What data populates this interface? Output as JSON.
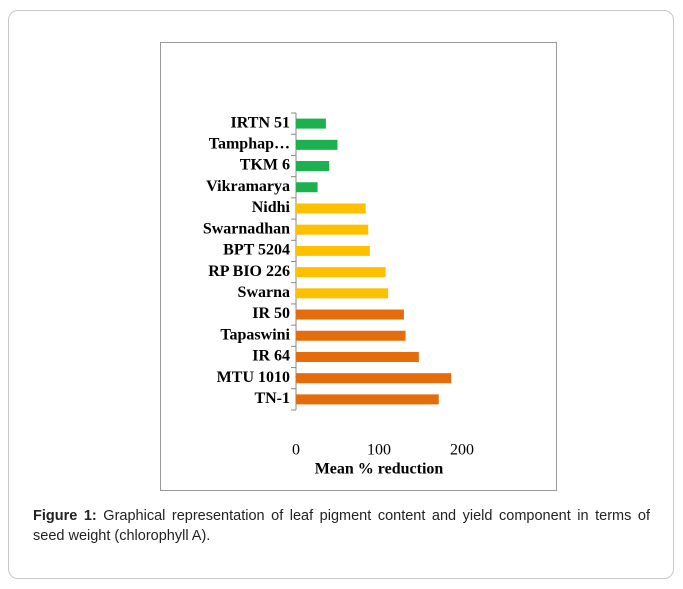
{
  "chart_data": {
    "type": "bar",
    "orientation": "horizontal",
    "categories": [
      "IRTN 51",
      "Tamphap…",
      "TKM 6",
      "Vikramarya",
      "Nidhi",
      "Swarnadhan",
      "BPT 5204",
      "RP BIO 226",
      "Swarna",
      "IR 50",
      "Tapaswini",
      "IR 64",
      "MTU 1010",
      "TN-1"
    ],
    "values": [
      36,
      50,
      40,
      26,
      84,
      87,
      89,
      108,
      111,
      130,
      132,
      148,
      187,
      172
    ],
    "colors": [
      "#1db04f",
      "#1db04f",
      "#1db04f",
      "#1db04f",
      "#ffc000",
      "#ffc000",
      "#ffc000",
      "#ffc000",
      "#ffc000",
      "#e46c0a",
      "#e46c0a",
      "#e46c0a",
      "#e46c0a",
      "#e46c0a"
    ],
    "xlabel": "Mean % reduction",
    "xlim": [
      0,
      200
    ],
    "xticks": [
      0,
      100,
      200
    ],
    "grid": false
  },
  "caption": {
    "label": "Figure 1:",
    "text": "Graphical representation of leaf pigment content and yield component in terms of seed weight (chlorophyll A)."
  }
}
